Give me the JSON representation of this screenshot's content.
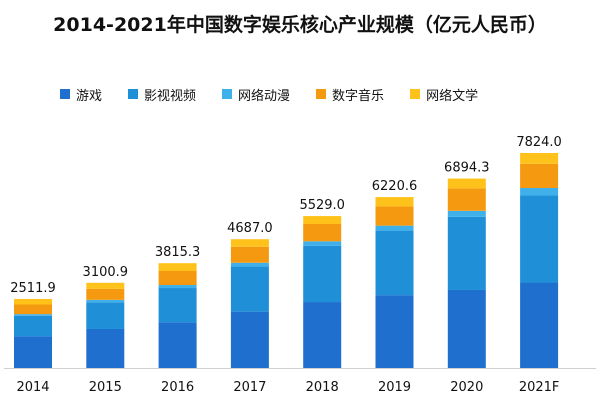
{
  "chart_data": {
    "type": "bar",
    "stacked": true,
    "title": "2014-2021年中国数字娱乐核心产业规模（亿元人民币）",
    "categories": [
      "2014",
      "2015",
      "2016",
      "2017",
      "2018",
      "2019",
      "2020",
      "2021F"
    ],
    "totals": [
      "2511.9",
      "3100.9",
      "3815.3",
      "4687.0",
      "5529.0",
      "6220.6",
      "6894.3",
      "7824.0"
    ],
    "series": [
      {
        "name": "游戏",
        "color": "#1f6fcf",
        "values": [
          1150,
          1420,
          1660,
          2050,
          2400,
          2650,
          2840,
          3110
        ]
      },
      {
        "name": "影视视频",
        "color": "#1f90d8",
        "values": [
          750,
          970,
          1250,
          1650,
          2050,
          2350,
          2660,
          3170
        ]
      },
      {
        "name": "网络动漫",
        "color": "#3fb0ea",
        "values": [
          60,
          90,
          110,
          130,
          160,
          180,
          220,
          270
        ]
      },
      {
        "name": "数字音乐",
        "color": "#f59a10",
        "values": [
          350,
          400,
          510,
          580,
          630,
          700,
          820,
          880
        ]
      },
      {
        "name": "网络文学",
        "color": "#ffc21a",
        "values": [
          201.9,
          220.9,
          285.3,
          277.0,
          289.0,
          340.6,
          354.3,
          394.0
        ]
      }
    ],
    "xlabel": "",
    "ylabel": "",
    "ylim": [
      0,
      8000
    ],
    "grid": false,
    "legend": "top"
  }
}
